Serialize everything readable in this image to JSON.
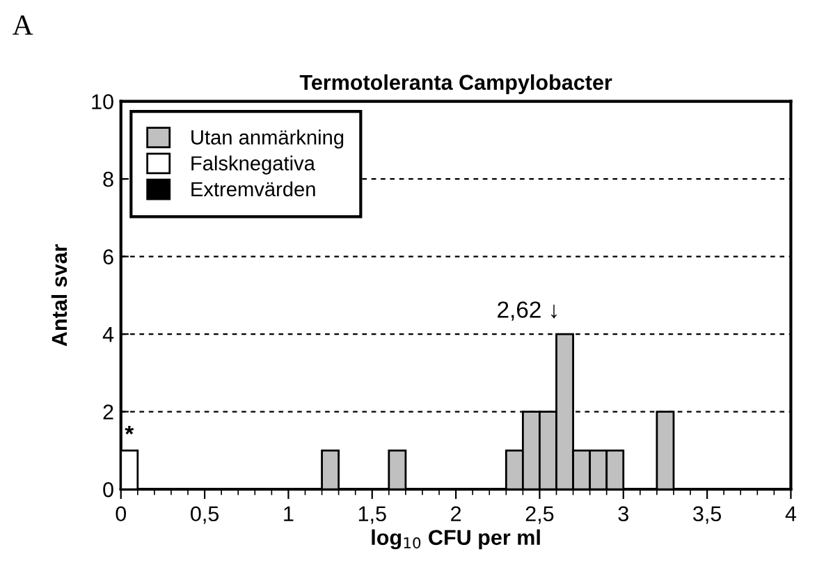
{
  "chart_data": {
    "type": "bar",
    "title": "Termotoleranta Campylobacter",
    "xlabel": "log$_{10}$ CFU per ml",
    "ylabel": "Antal svar",
    "series": [
      {
        "name": "Utan anmärkning",
        "color": "#c0c0c0",
        "x": [
          1.25,
          1.65,
          2.35,
          2.45,
          2.55,
          2.65,
          2.75,
          2.85,
          2.95,
          3.25
        ],
        "values": [
          1,
          1,
          1,
          2,
          2,
          4,
          1,
          1,
          1,
          2
        ]
      },
      {
        "name": "Falsknegativa",
        "color": "#ffffff",
        "x": [
          0.05
        ],
        "values": [
          1
        ]
      },
      {
        "name": "Extremvärden",
        "color": "#000000"
      }
    ],
    "xlim": [
      0,
      4
    ],
    "xticks": [
      0,
      {
        "value": 0.5,
        "label": "0,5"
      },
      1,
      {
        "value": 1.5,
        "label": "1,5"
      },
      2,
      {
        "value": 2.5,
        "label": "2,5"
      },
      3,
      {
        "value": 3.5,
        "label": "3,5"
      },
      4
    ],
    "ylim": [
      0,
      10
    ],
    "yticks": [
      0,
      2,
      4,
      6,
      8,
      10
    ],
    "grid": "y",
    "line_style": "dashed",
    "legend": "top left",
    "annotations": [
      "A",
      {
        "text": "*",
        "x": 0.05,
        "y": 1
      },
      "2,62 ↓"
    ]
  }
}
